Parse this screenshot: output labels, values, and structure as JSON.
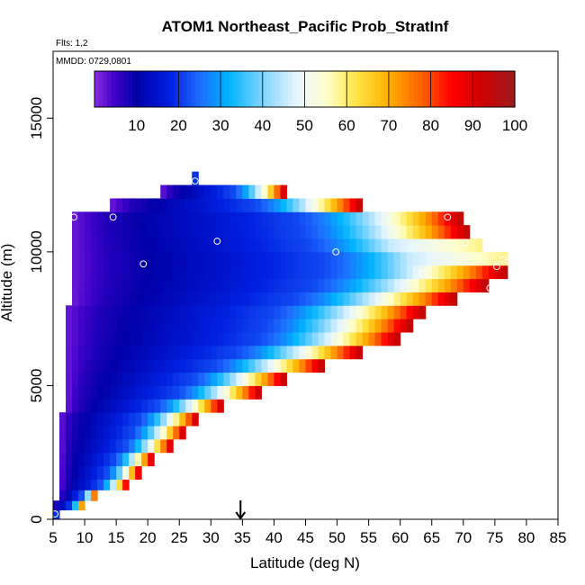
{
  "chart_data": {
    "type": "heatmap",
    "title": "ATOM1 Northeast_Pacific Prob_StratInf",
    "subtitle_flights": "Flts: 1,2",
    "subtitle_dates": "MMDD: 0729,0801",
    "xlabel": "Latitude (deg N)",
    "ylabel": "Altitude (m)",
    "xlim": [
      5,
      85
    ],
    "ylim": [
      0,
      17500
    ],
    "x_ticks": [
      5,
      10,
      15,
      20,
      25,
      30,
      35,
      40,
      45,
      50,
      55,
      60,
      65,
      70,
      75,
      80,
      85
    ],
    "x_tick_labels": [
      "5",
      "10",
      "15",
      "20",
      "25",
      "30",
      "35",
      "40",
      "45",
      "50",
      "55",
      "60",
      "65",
      "70",
      "75",
      "80",
      "85"
    ],
    "y_ticks": [
      0,
      5000,
      10000,
      15000
    ],
    "y_tick_labels": [
      "0",
      "5000",
      "10000",
      "15000"
    ],
    "colorbar": {
      "range": [
        0,
        100
      ],
      "ticks": [
        10,
        20,
        30,
        40,
        50,
        60,
        70,
        80,
        90,
        100
      ],
      "tick_labels": [
        "10",
        "20",
        "30",
        "40",
        "50",
        "60",
        "70",
        "80",
        "90",
        "100"
      ],
      "stops": [
        {
          "v": 0,
          "c": "#8a2be2"
        },
        {
          "v": 5,
          "c": "#3d00c8"
        },
        {
          "v": 10,
          "c": "#0000a8"
        },
        {
          "v": 18,
          "c": "#0020e0"
        },
        {
          "v": 25,
          "c": "#1e6cff"
        },
        {
          "v": 32,
          "c": "#00b4ff"
        },
        {
          "v": 40,
          "c": "#7fd4ff"
        },
        {
          "v": 48,
          "c": "#e6f5ff"
        },
        {
          "v": 55,
          "c": "#ffffd0"
        },
        {
          "v": 62,
          "c": "#ffe64a"
        },
        {
          "v": 70,
          "c": "#ffb000"
        },
        {
          "v": 78,
          "c": "#ff6000"
        },
        {
          "v": 85,
          "c": "#ff0000"
        },
        {
          "v": 92,
          "c": "#d00000"
        },
        {
          "v": 100,
          "c": "#9b1c1c"
        }
      ]
    },
    "cell_size": {
      "dlat": 1,
      "dalt": 370
    },
    "envelope": [
      {
        "alt_min": 0,
        "alt_max": 350,
        "lat_min": 5,
        "lat_max": 6
      },
      {
        "alt_min": 350,
        "alt_max": 700,
        "lat_min": 5,
        "lat_max": 10
      },
      {
        "alt_min": 700,
        "alt_max": 1100,
        "lat_min": 6,
        "lat_max": 12
      },
      {
        "alt_min": 1100,
        "alt_max": 1500,
        "lat_min": 6,
        "lat_max": 17
      },
      {
        "alt_min": 1500,
        "alt_max": 2000,
        "lat_min": 6,
        "lat_max": 19
      },
      {
        "alt_min": 2000,
        "alt_max": 2500,
        "lat_min": 6,
        "lat_max": 21
      },
      {
        "alt_min": 2500,
        "alt_max": 3000,
        "lat_min": 6,
        "lat_max": 24
      },
      {
        "alt_min": 3000,
        "alt_max": 3500,
        "lat_min": 6,
        "lat_max": 26
      },
      {
        "alt_min": 3500,
        "alt_max": 4000,
        "lat_min": 6,
        "lat_max": 28
      },
      {
        "alt_min": 4000,
        "alt_max": 4500,
        "lat_min": 7,
        "lat_max": 32
      },
      {
        "alt_min": 4500,
        "alt_max": 5000,
        "lat_min": 7,
        "lat_max": 38
      },
      {
        "alt_min": 5000,
        "alt_max": 5500,
        "lat_min": 7,
        "lat_max": 42
      },
      {
        "alt_min": 5500,
        "alt_max": 6000,
        "lat_min": 7,
        "lat_max": 48
      },
      {
        "alt_min": 6000,
        "alt_max": 6500,
        "lat_min": 7,
        "lat_max": 54
      },
      {
        "alt_min": 6500,
        "alt_max": 7000,
        "lat_min": 7,
        "lat_max": 60
      },
      {
        "alt_min": 7000,
        "alt_max": 7500,
        "lat_min": 7,
        "lat_max": 62
      },
      {
        "alt_min": 7500,
        "alt_max": 8000,
        "lat_min": 7,
        "lat_max": 64
      },
      {
        "alt_min": 8000,
        "alt_max": 8500,
        "lat_min": 8,
        "lat_max": 69
      },
      {
        "alt_min": 8500,
        "alt_max": 9000,
        "lat_min": 8,
        "lat_max": 74
      },
      {
        "alt_min": 9000,
        "alt_max": 9500,
        "lat_min": 8,
        "lat_max": 77
      },
      {
        "alt_min": 9500,
        "alt_max": 10000,
        "lat_min": 8,
        "lat_max": 77
      },
      {
        "alt_min": 10000,
        "alt_max": 10500,
        "lat_min": 8,
        "lat_max": 73
      },
      {
        "alt_min": 10500,
        "alt_max": 11000,
        "lat_min": 8,
        "lat_max": 71
      },
      {
        "alt_min": 11000,
        "alt_max": 11500,
        "lat_min": 8,
        "lat_max": 70
      },
      {
        "alt_min": 11500,
        "alt_max": 12000,
        "lat_min": 14,
        "lat_max": 54
      },
      {
        "alt_min": 12000,
        "alt_max": 12500,
        "lat_min": 22,
        "lat_max": 42
      },
      {
        "alt_min": 12500,
        "alt_max": 13000,
        "lat_min": 27,
        "lat_max": 28
      }
    ],
    "series": [
      {
        "lat": 5.3,
        "alt": 200
      },
      {
        "lat": 8.3,
        "alt": 11300
      },
      {
        "lat": 14.5,
        "alt": 11300
      },
      {
        "lat": 19.3,
        "alt": 9550
      },
      {
        "lat": 27.5,
        "alt": 12650
      },
      {
        "lat": 31.0,
        "alt": 10400
      },
      {
        "lat": 49.8,
        "alt": 10000
      },
      {
        "lat": 63.5,
        "alt": 9200
      },
      {
        "lat": 67.5,
        "alt": 11300
      },
      {
        "lat": 70.3,
        "alt": 10350
      },
      {
        "lat": 74.2,
        "alt": 8650
      },
      {
        "lat": 75.3,
        "alt": 9450
      },
      {
        "lat": 76.3,
        "alt": 9700
      }
    ],
    "marker": {
      "lat": 34.7,
      "label": "arrow"
    }
  }
}
